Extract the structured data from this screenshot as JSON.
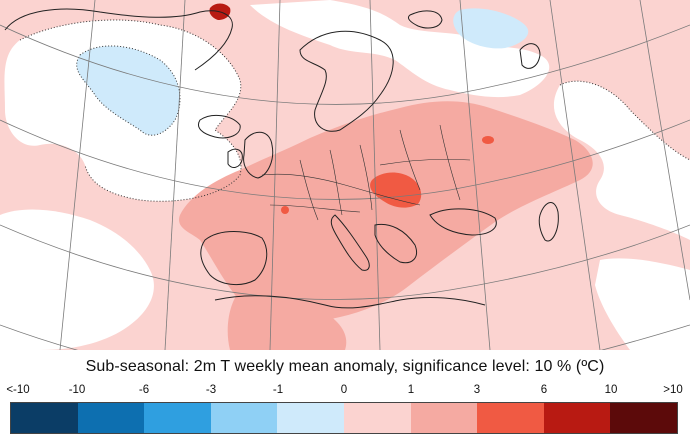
{
  "caption": "Sub-seasonal: 2m T weekly mean anomaly, significance level: 10 % (ºC)",
  "legend": {
    "labels": [
      "<-10",
      "-10",
      "-6",
      "-3",
      "-1",
      "0",
      "1",
      "3",
      "6",
      "10",
      ">10"
    ],
    "colors": [
      "#0b3d66",
      "#0d6fb0",
      "#2f9fe0",
      "#8fd0f5",
      "#cfeafb",
      "#fbd3d0",
      "#f5aaa2",
      "#f05a43",
      "#b81a12",
      "#5c0a0a"
    ]
  },
  "map_colors": {
    "sea": "#ffffff",
    "weak_warm": "#fbd3d0",
    "moderate_warm": "#f5aaa2",
    "strong_warm": "#f05a43",
    "weak_cold": "#cfeafb",
    "coast": "#222222",
    "graticule": "#7a7a7a"
  }
}
